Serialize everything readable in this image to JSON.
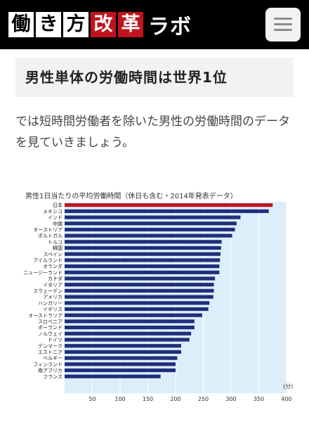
{
  "header": {
    "logo_chars": [
      "働",
      "き",
      "方",
      "改",
      "革"
    ],
    "logo_tail": "ラボ"
  },
  "article": {
    "heading": "男性単体の労働時間は世界1位",
    "intro": "では短時間労働者を除いた男性の労働時間のデータを見ていきましょう。"
  },
  "colors": {
    "highlight_bar": "#c0141c",
    "bar": "#1f2f7a",
    "plot_bg": "#dceefa"
  },
  "chart_data": {
    "type": "bar",
    "orientation": "horizontal",
    "title": "男性1日当たりの平均労働時間（休日も含む・2014年発表データ）",
    "unit_label": "(分)",
    "categories": [
      "日本",
      "メキシコ",
      "インド",
      "中国",
      "オーストリア",
      "ポルトガル",
      "トルコ",
      "韓国",
      "スペイン",
      "アイルランド",
      "オランダ",
      "ニュージーランド",
      "カナダ",
      "イタリア",
      "スウェーデン",
      "アメリカ",
      "ハンガリー",
      "イギリス",
      "オーストラリア",
      "スロベニア",
      "ポーランド",
      "ノルウェイ",
      "ドイツ",
      "デンマーク",
      "エストニア",
      "ベルギー",
      "フィンランド",
      "南アフリカ",
      "フランス"
    ],
    "values": [
      375,
      368,
      317,
      310,
      307,
      302,
      283,
      282,
      281,
      280,
      279,
      279,
      271,
      269,
      269,
      268,
      261,
      259,
      248,
      234,
      234,
      228,
      225,
      210,
      210,
      203,
      200,
      200,
      173
    ],
    "highlight_index": 0,
    "xlim": [
      0,
      400
    ],
    "xticks": [
      50,
      100,
      150,
      200,
      250,
      300,
      350,
      400
    ],
    "grid": true
  }
}
